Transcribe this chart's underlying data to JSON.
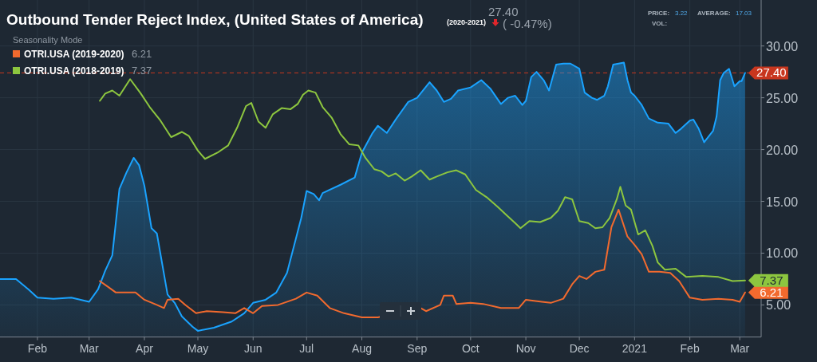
{
  "chart_data": {
    "type": "line",
    "title": "Outbound Tender Reject Index, (United States of America)",
    "subtitle": "(2020-2021)",
    "legend_title": "Seasonality Mode",
    "legend": "top left",
    "grid": true,
    "marker": "none",
    "line_style": "solid",
    "annotations": [
      "27.40",
      "( -0.47%)",
      "PRICE:",
      "3.22",
      "AVERAGE:",
      "17.03",
      "VOL:",
      "6.21",
      "7.37"
    ],
    "xlim": [
      "2020-01-11",
      "2021-03-13"
    ],
    "xticks": [
      {
        "value": "2020-02-01",
        "label": "Feb"
      },
      {
        "value": "2020-03-01",
        "label": "Mar"
      },
      {
        "value": "2020-04-01",
        "label": "Apr"
      },
      {
        "value": "2020-05-01",
        "label": "May"
      },
      {
        "value": "2020-06-01",
        "label": "Jun"
      },
      {
        "value": "2020-07-01",
        "label": "Jul"
      },
      {
        "value": "2020-08-01",
        "label": "Aug"
      },
      {
        "value": "2020-09-01",
        "label": "Sep"
      },
      {
        "value": "2020-10-01",
        "label": "Oct"
      },
      {
        "value": "2020-11-01",
        "label": "Nov"
      },
      {
        "value": "2020-12-01",
        "label": "Dec"
      },
      {
        "value": "2021-01-01",
        "label": "2021"
      },
      {
        "value": "2021-02-01",
        "label": "Feb"
      },
      {
        "value": "2021-03-01",
        "label": "Mar"
      }
    ],
    "ylim": [
      1.9,
      34.4
    ],
    "yticks": [
      {
        "value": 5,
        "label": "5.00"
      },
      {
        "value": 10,
        "label": "10.00"
      },
      {
        "value": 15,
        "label": "15.00"
      },
      {
        "value": 20,
        "label": "20.00"
      },
      {
        "value": 25,
        "label": "25.00"
      },
      {
        "value": 30,
        "label": "30.00"
      }
    ],
    "ref_lines": [
      {
        "axis": "y",
        "value": 27.4,
        "color": "#c8361e",
        "line_style": "dashed"
      }
    ],
    "series": [
      {
        "type": "area",
        "color": "#1aa3ff",
        "x": [
          "2020-01-11",
          "2020-01-20",
          "2020-01-27",
          "2020-02-01",
          "2020-02-10",
          "2020-02-20",
          "2020-03-01",
          "2020-03-06",
          "2020-03-10",
          "2020-03-14",
          "2020-03-18",
          "2020-03-22",
          "2020-03-26",
          "2020-03-29",
          "2020-04-01",
          "2020-04-05",
          "2020-04-08",
          "2020-04-14",
          "2020-04-18",
          "2020-04-22",
          "2020-04-28",
          "2020-05-01",
          "2020-05-10",
          "2020-05-20",
          "2020-05-27",
          "2020-06-01",
          "2020-06-08",
          "2020-06-14",
          "2020-06-20",
          "2020-06-25",
          "2020-06-28",
          "2020-07-01",
          "2020-07-05",
          "2020-07-08",
          "2020-07-10",
          "2020-07-20",
          "2020-07-28",
          "2020-08-01",
          "2020-08-07",
          "2020-08-10",
          "2020-08-15",
          "2020-08-20",
          "2020-08-27",
          "2020-09-01",
          "2020-09-08",
          "2020-09-12",
          "2020-09-16",
          "2020-09-20",
          "2020-09-24",
          "2020-10-01",
          "2020-10-07",
          "2020-10-12",
          "2020-10-18",
          "2020-10-22",
          "2020-10-26",
          "2020-10-30",
          "2020-11-01",
          "2020-11-04",
          "2020-11-07",
          "2020-11-11",
          "2020-11-14",
          "2020-11-18",
          "2020-11-22",
          "2020-11-26",
          "2020-12-01",
          "2020-12-04",
          "2020-12-08",
          "2020-12-11",
          "2020-12-15",
          "2020-12-17",
          "2020-12-20",
          "2020-12-26",
          "2020-12-28",
          "2020-12-30",
          "2021-01-01",
          "2021-01-05",
          "2021-01-09",
          "2021-01-14",
          "2021-01-20",
          "2021-01-24",
          "2021-01-27",
          "2021-02-01",
          "2021-02-03",
          "2021-02-06",
          "2021-02-09",
          "2021-02-14",
          "2021-02-16",
          "2021-02-18",
          "2021-02-20",
          "2021-02-23",
          "2021-02-26",
          "2021-03-01",
          "2021-03-02",
          "2021-03-04"
        ],
        "values": [
          7.5,
          7.5,
          6.5,
          5.7,
          5.6,
          5.7,
          5.3,
          6.5,
          8.3,
          9.8,
          16.2,
          17.8,
          19.2,
          18.5,
          16.5,
          12.4,
          11.9,
          6.0,
          5.2,
          3.9,
          2.9,
          2.5,
          2.8,
          3.4,
          4.2,
          5.2,
          5.5,
          6.2,
          8.1,
          11.4,
          13.4,
          16.0,
          15.7,
          15.1,
          15.8,
          16.6,
          17.3,
          19.7,
          21.6,
          22.3,
          21.6,
          22.9,
          24.6,
          25.0,
          26.5,
          25.7,
          24.6,
          24.9,
          25.7,
          26.0,
          26.7,
          25.9,
          24.4,
          25.0,
          25.2,
          24.3,
          24.7,
          27.0,
          27.5,
          26.7,
          25.7,
          28.2,
          28.3,
          28.3,
          27.8,
          25.5,
          25.0,
          24.8,
          25.2,
          26.1,
          28.2,
          28.4,
          26.7,
          25.5,
          25.2,
          24.3,
          23.0,
          22.6,
          22.5,
          21.6,
          22.0,
          22.8,
          22.9,
          22.0,
          20.7,
          21.8,
          23.2,
          26.7,
          27.4,
          27.8,
          26.1,
          26.6,
          26.6,
          27.4
        ],
        "value_labels": [
          null,
          null,
          null,
          null,
          null,
          null,
          null,
          null,
          null,
          null,
          null,
          null,
          null,
          null,
          null,
          null,
          null,
          null,
          null,
          null,
          null,
          null,
          null,
          null,
          null,
          null,
          null,
          null,
          null,
          null,
          null,
          null,
          null,
          null,
          null,
          null,
          null,
          null,
          null,
          null,
          null,
          null,
          null,
          null,
          null,
          null,
          null,
          null,
          null,
          null,
          null,
          null,
          null,
          null,
          null,
          null,
          null,
          null,
          null,
          null,
          null,
          null,
          null,
          null,
          null,
          null,
          null,
          null,
          null,
          null,
          null,
          null,
          null,
          null,
          null,
          null,
          null,
          null,
          null,
          null,
          null,
          null,
          null,
          null,
          null,
          null,
          null,
          null,
          null,
          null,
          null,
          null,
          null,
          "27.40"
        ]
      },
      {
        "name": "OTRI.USA (2019-2020)",
        "color": "#f26a2e",
        "x": [
          "2020-03-07",
          "2020-03-12",
          "2020-03-16",
          "2020-03-22",
          "2020-03-27",
          "2020-04-01",
          "2020-04-08",
          "2020-04-12",
          "2020-04-14",
          "2020-04-20",
          "2020-04-24",
          "2020-04-30",
          "2020-05-06",
          "2020-05-15",
          "2020-05-22",
          "2020-05-27",
          "2020-06-01",
          "2020-06-06",
          "2020-06-15",
          "2020-06-25",
          "2020-07-01",
          "2020-07-07",
          "2020-07-14",
          "2020-07-22",
          "2020-08-01",
          "2020-08-10",
          "2020-09-03",
          "2020-09-06",
          "2020-09-14",
          "2020-09-16",
          "2020-09-21",
          "2020-09-23",
          "2020-10-01",
          "2020-10-08",
          "2020-10-18",
          "2020-10-28",
          "2020-11-01",
          "2020-11-10",
          "2020-11-15",
          "2020-11-22",
          "2020-11-27",
          "2020-12-01",
          "2020-12-05",
          "2020-12-10",
          "2020-12-15",
          "2020-12-19",
          "2020-12-23",
          "2020-12-28",
          "2021-01-01",
          "2021-01-05",
          "2021-01-09",
          "2021-01-15",
          "2021-01-21",
          "2021-01-26",
          "2021-02-01",
          "2021-02-08",
          "2021-02-17",
          "2021-02-25",
          "2021-03-01",
          "2021-03-04"
        ],
        "values": [
          7.3,
          6.7,
          6.2,
          6.2,
          6.2,
          5.5,
          5.0,
          4.7,
          5.5,
          5.6,
          5.0,
          4.2,
          4.4,
          4.3,
          4.2,
          4.7,
          4.2,
          4.9,
          5.0,
          5.6,
          6.2,
          5.9,
          4.7,
          4.2,
          3.8,
          3.8,
          4.7,
          4.4,
          5.0,
          5.9,
          5.9,
          5.1,
          5.2,
          5.1,
          4.7,
          4.7,
          5.5,
          5.3,
          5.2,
          5.6,
          7.0,
          7.8,
          7.5,
          8.2,
          8.4,
          12.5,
          14.2,
          11.6,
          10.8,
          9.9,
          8.2,
          8.2,
          8.1,
          7.3,
          5.7,
          5.5,
          5.6,
          5.5,
          5.3,
          6.21
        ],
        "value_labels": [
          null,
          null,
          null,
          null,
          null,
          null,
          null,
          null,
          null,
          null,
          null,
          null,
          null,
          null,
          null,
          null,
          null,
          null,
          null,
          null,
          null,
          null,
          null,
          null,
          null,
          null,
          null,
          null,
          null,
          null,
          null,
          null,
          null,
          null,
          null,
          null,
          null,
          null,
          null,
          null,
          null,
          null,
          null,
          null,
          null,
          null,
          null,
          null,
          null,
          null,
          null,
          null,
          null,
          null,
          null,
          null,
          null,
          null,
          null,
          "6.21"
        ]
      },
      {
        "name": "OTRI.USA (2018-2019)",
        "color": "#8dc63f",
        "x": [
          "2020-03-07",
          "2020-03-10",
          "2020-03-14",
          "2020-03-18",
          "2020-03-24",
          "2020-03-30",
          "2020-04-04",
          "2020-04-10",
          "2020-04-16",
          "2020-04-22",
          "2020-04-26",
          "2020-05-01",
          "2020-05-05",
          "2020-05-12",
          "2020-05-18",
          "2020-05-23",
          "2020-05-28",
          "2020-05-31",
          "2020-06-04",
          "2020-06-08",
          "2020-06-12",
          "2020-06-17",
          "2020-06-22",
          "2020-06-26",
          "2020-06-29",
          "2020-07-02",
          "2020-07-06",
          "2020-07-10",
          "2020-07-15",
          "2020-07-20",
          "2020-07-25",
          "2020-07-30",
          "2020-08-03",
          "2020-08-08",
          "2020-08-12",
          "2020-08-16",
          "2020-08-20",
          "2020-08-25",
          "2020-08-29",
          "2020-09-03",
          "2020-09-08",
          "2020-09-12",
          "2020-09-18",
          "2020-09-23",
          "2020-09-28",
          "2020-10-04",
          "2020-10-10",
          "2020-10-16",
          "2020-10-21",
          "2020-10-26",
          "2020-10-29",
          "2020-11-03",
          "2020-11-09",
          "2020-11-15",
          "2020-11-19",
          "2020-11-23",
          "2020-11-27",
          "2020-12-01",
          "2020-12-06",
          "2020-12-10",
          "2020-12-14",
          "2020-12-18",
          "2020-12-22",
          "2020-12-24",
          "2020-12-27",
          "2020-12-30",
          "2021-01-03",
          "2021-01-07",
          "2021-01-11",
          "2021-01-14",
          "2021-01-18",
          "2021-01-24",
          "2021-01-30",
          "2021-02-08",
          "2021-02-17",
          "2021-02-25",
          "2021-03-04"
        ],
        "values": [
          24.7,
          25.4,
          25.7,
          25.2,
          26.8,
          25.4,
          24.1,
          22.8,
          21.2,
          21.7,
          21.3,
          19.9,
          19.1,
          19.7,
          20.4,
          22.1,
          24.2,
          24.5,
          22.7,
          22.1,
          23.4,
          24.0,
          23.9,
          24.4,
          25.3,
          25.7,
          25.5,
          24.1,
          23.1,
          21.5,
          20.5,
          20.4,
          19.2,
          18.1,
          17.9,
          17.4,
          17.7,
          17.0,
          17.4,
          18.0,
          17.1,
          17.4,
          17.8,
          18.0,
          17.6,
          16.1,
          15.4,
          14.5,
          13.7,
          12.9,
          12.4,
          13.1,
          13.0,
          13.4,
          14.1,
          15.4,
          15.2,
          13.1,
          12.9,
          12.4,
          12.5,
          13.4,
          15.2,
          16.4,
          14.6,
          14.2,
          11.8,
          12.2,
          10.7,
          9.1,
          8.4,
          8.5,
          7.7,
          7.8,
          7.7,
          7.3,
          7.37
        ],
        "value_labels": [
          null,
          null,
          null,
          null,
          null,
          null,
          null,
          null,
          null,
          null,
          null,
          null,
          null,
          null,
          null,
          null,
          null,
          null,
          null,
          null,
          null,
          null,
          null,
          null,
          null,
          null,
          null,
          null,
          null,
          null,
          null,
          null,
          null,
          null,
          null,
          null,
          null,
          null,
          null,
          null,
          null,
          null,
          null,
          null,
          null,
          null,
          null,
          null,
          null,
          null,
          null,
          null,
          null,
          null,
          null,
          null,
          null,
          null,
          null,
          null,
          null,
          null,
          null,
          null,
          null,
          null,
          null,
          null,
          null,
          null,
          null,
          null,
          null,
          null,
          null,
          null,
          "7.37"
        ]
      }
    ]
  }
}
